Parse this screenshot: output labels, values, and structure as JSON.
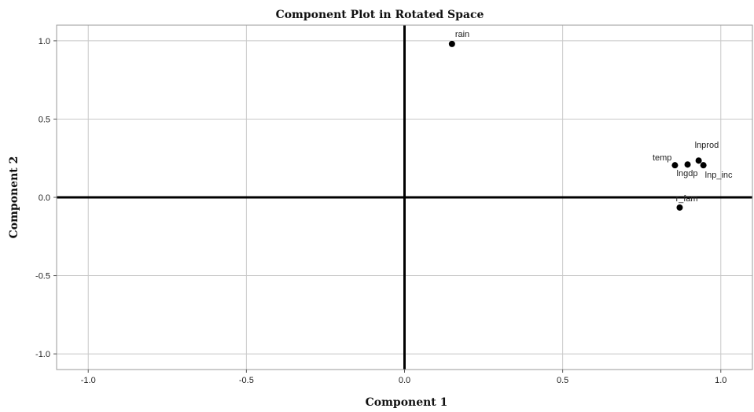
{
  "chart_data": {
    "type": "scatter",
    "title": "Component Plot in Rotated Space",
    "xlabel": "Component 1",
    "ylabel": "Component 2",
    "xlim": [
      -1.1,
      1.1
    ],
    "ylim": [
      -1.1,
      1.1
    ],
    "grid": true,
    "x_ticks": [
      -1.0,
      -0.5,
      0.0,
      0.5,
      1.0
    ],
    "y_ticks": [
      1.0,
      0.5,
      0.0,
      -0.5,
      -1.0
    ],
    "x_tick_labels": [
      "-1.0",
      "-0.5",
      "0.0",
      "0.5",
      "1.0"
    ],
    "y_tick_labels": [
      "1.0",
      "0.5",
      "0.0",
      "-0.5",
      "-1.0"
    ],
    "points": [
      {
        "label": "rain",
        "x": 0.15,
        "y": 0.98
      },
      {
        "label": "temp",
        "x": 0.855,
        "y": 0.205
      },
      {
        "label": "lngdp",
        "x": 0.895,
        "y": 0.21
      },
      {
        "label": "lnprod",
        "x": 0.93,
        "y": 0.235
      },
      {
        "label": "lnp_inc",
        "x": 0.945,
        "y": 0.205
      },
      {
        "label": "r_fam",
        "x": 0.87,
        "y": -0.065
      }
    ]
  }
}
